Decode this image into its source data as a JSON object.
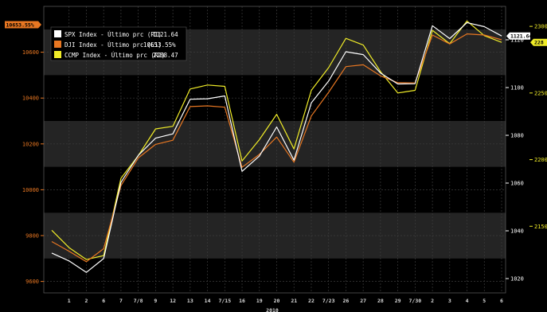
{
  "chart_data": {
    "type": "line",
    "x": [
      "",
      "1",
      "2",
      "6",
      "7",
      "7/8",
      "9",
      "12",
      "13",
      "14",
      "7/15",
      "16",
      "19",
      "20",
      "21",
      "22",
      "7/23",
      "26",
      "27",
      "28",
      "29",
      "7/30",
      "2",
      "3",
      "4",
      "5",
      "6"
    ],
    "year_label": "2010",
    "series": [
      {
        "name": "SPX Index - Último prc (R1)",
        "last_value": "1121.64",
        "axis": "R1",
        "color": "#ffffff",
        "values": [
          1030.7,
          1027.4,
          1022.6,
          1028.4,
          1060.3,
          1071.6,
          1078.8,
          1080.6,
          1095.1,
          1095.3,
          1096.5,
          1064.9,
          1071.3,
          1083.5,
          1069.6,
          1093.6,
          1102.7,
          1115.0,
          1113.8,
          1106.1,
          1101.5,
          1101.6,
          1125.9,
          1120.5,
          1127.2,
          1125.5,
          1121.6
        ]
      },
      {
        "name": "DJI Index - Último prc (L1)",
        "last_value": "10653.55%",
        "axis": "L1",
        "color": "#e87722",
        "values": [
          9774,
          9732,
          9686,
          9743,
          10018,
          10139,
          10198,
          10216,
          10363,
          10366,
          10360,
          10098,
          10154,
          10230,
          10120,
          10322,
          10425,
          10537,
          10545,
          10497,
          10467,
          10466,
          10675,
          10636,
          10680,
          10675,
          10654
        ]
      },
      {
        "name": "CCMP Index - Último prc (R2)",
        "last_value": "2288.47",
        "axis": "R2",
        "color": "#f0ec28",
        "values": [
          2147,
          2134,
          2125,
          2128,
          2186,
          2203,
          2223,
          2225,
          2253,
          2256,
          2255,
          2199,
          2215,
          2234,
          2208,
          2252,
          2269,
          2291,
          2286,
          2266,
          2250,
          2252,
          2297,
          2287,
          2304,
          2293,
          2288
        ]
      }
    ],
    "axes": {
      "L1": {
        "min": 9550,
        "max": 10800,
        "ticks": [
          9600,
          9800,
          10000,
          10200,
          10400,
          10600
        ],
        "tick_labels": [
          "9600",
          "9800",
          "10000",
          "10200",
          "10400",
          "10600"
        ],
        "color": "#e87722"
      },
      "R1": {
        "min": 1014,
        "max": 1134,
        "ticks": [
          1020,
          1040,
          1060,
          1080,
          1100,
          1120
        ],
        "tick_labels": [
          "1020",
          "1040",
          "1060",
          "1080",
          "1100",
          "1120"
        ],
        "color": "#ffffff"
      },
      "R2": {
        "min": 2100,
        "max": 2315,
        "ticks": [
          2150,
          2200,
          2250,
          2300
        ],
        "tick_labels": [
          "2150",
          "2200",
          "2250",
          "2300"
        ],
        "color": "#f0ec28"
      }
    },
    "grid": true,
    "legend_position": "top-left",
    "background_bands": [
      "#000000",
      "#242424"
    ]
  }
}
